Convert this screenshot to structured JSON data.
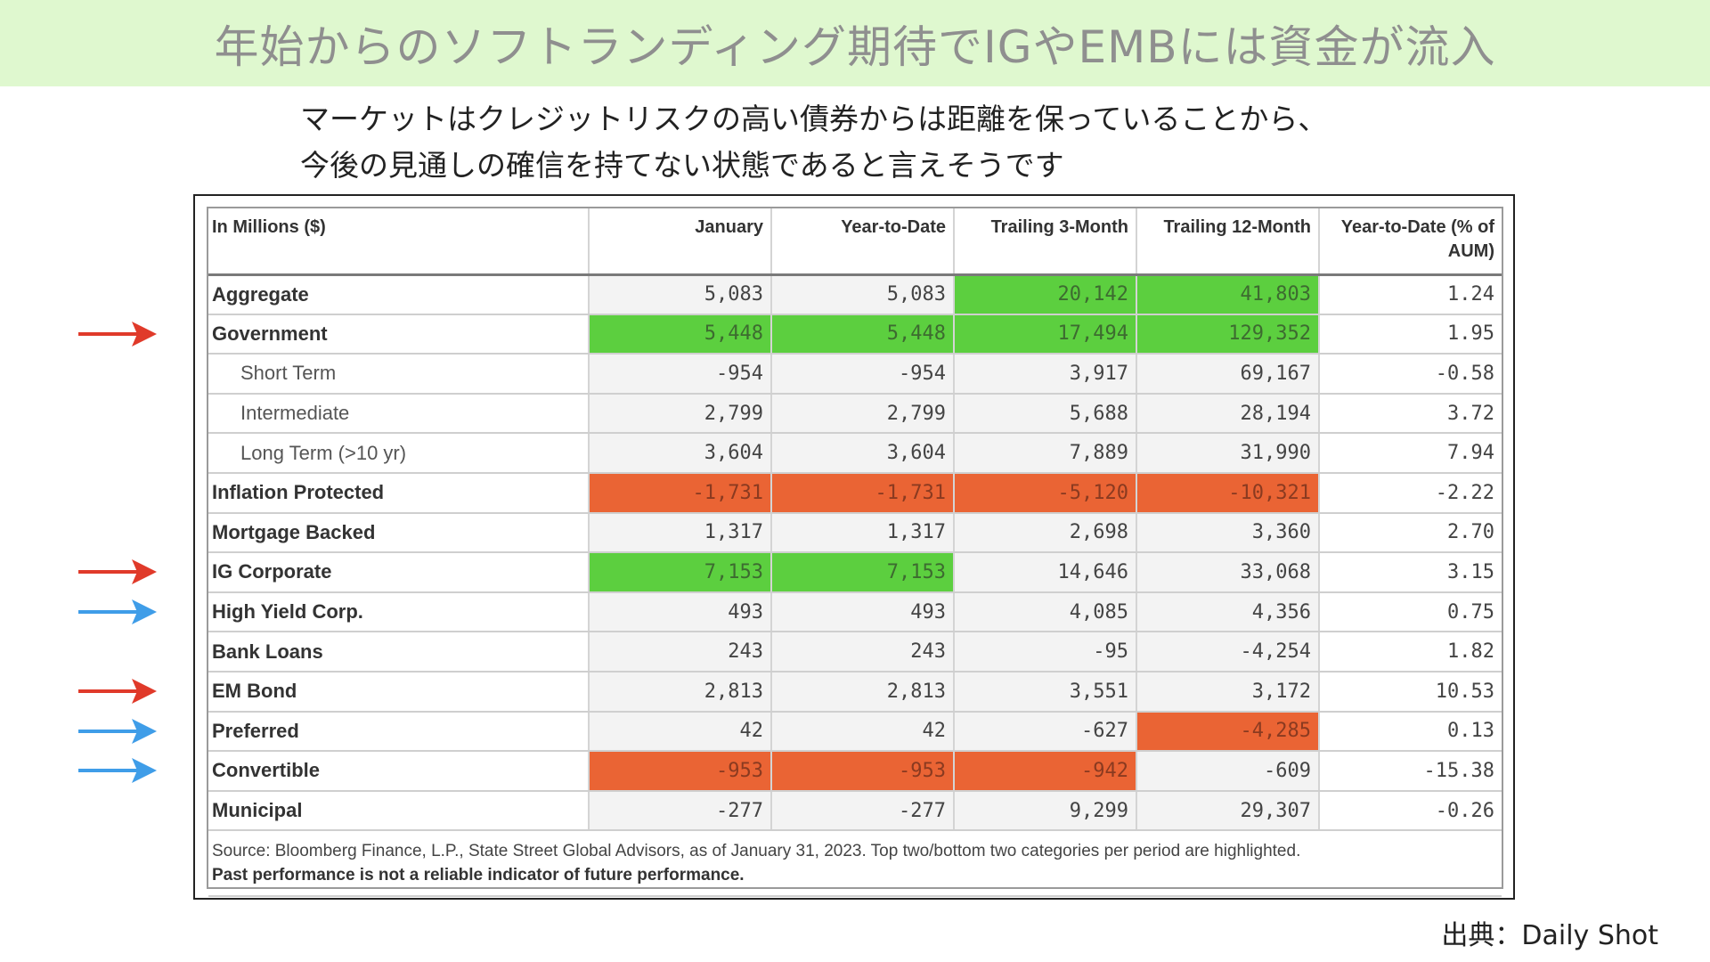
{
  "banner": {
    "title": "年始からのソフトランディング期待でIGやEMBには資金が流入"
  },
  "subtitle": {
    "line1": "マーケットはクレジットリスクの高い債券からは距離を保っていることから、",
    "line2": "今後の見通しの確信を持てない状態であると言えそうです"
  },
  "credit": "出典：Daily Shot",
  "colors": {
    "banner_bg": "#dff8cf",
    "highlight_top": "#5ccf3f",
    "highlight_bottom": "#ea6434",
    "arrow_red": "#e03a2a",
    "arrow_blue": "#3f9de8"
  },
  "chart_data": {
    "type": "table",
    "columns": [
      "In Millions ($)",
      "January",
      "Year-to-Date",
      "Trailing 3-Month",
      "Trailing 12-Month",
      "Year-to-Date (% of AUM)"
    ],
    "rows": [
      {
        "label": "Aggregate",
        "sub": false,
        "values": [
          "5,083",
          "5,083",
          "20,142",
          "41,803",
          "1.24"
        ],
        "highlight": [
          "",
          "",
          "green",
          "green",
          ""
        ],
        "arrow": ""
      },
      {
        "label": "Government",
        "sub": false,
        "values": [
          "5,448",
          "5,448",
          "17,494",
          "129,352",
          "1.95"
        ],
        "highlight": [
          "green",
          "green",
          "green",
          "green",
          ""
        ],
        "arrow": "red"
      },
      {
        "label": "Short Term",
        "sub": true,
        "values": [
          "-954",
          "-954",
          "3,917",
          "69,167",
          "-0.58"
        ],
        "highlight": [
          "",
          "",
          "",
          "",
          ""
        ],
        "arrow": ""
      },
      {
        "label": "Intermediate",
        "sub": true,
        "values": [
          "2,799",
          "2,799",
          "5,688",
          "28,194",
          "3.72"
        ],
        "highlight": [
          "",
          "",
          "",
          "",
          ""
        ],
        "arrow": ""
      },
      {
        "label": "Long Term (>10 yr)",
        "sub": true,
        "values": [
          "3,604",
          "3,604",
          "7,889",
          "31,990",
          "7.94"
        ],
        "highlight": [
          "",
          "",
          "",
          "",
          ""
        ],
        "arrow": ""
      },
      {
        "label": "Inflation Protected",
        "sub": false,
        "values": [
          "-1,731",
          "-1,731",
          "-5,120",
          "-10,321",
          "-2.22"
        ],
        "highlight": [
          "red",
          "red",
          "red",
          "red",
          ""
        ],
        "arrow": ""
      },
      {
        "label": "Mortgage Backed",
        "sub": false,
        "values": [
          "1,317",
          "1,317",
          "2,698",
          "3,360",
          "2.70"
        ],
        "highlight": [
          "",
          "",
          "",
          "",
          ""
        ],
        "arrow": ""
      },
      {
        "label": "IG Corporate",
        "sub": false,
        "values": [
          "7,153",
          "7,153",
          "14,646",
          "33,068",
          "3.15"
        ],
        "highlight": [
          "green",
          "green",
          "",
          "",
          ""
        ],
        "arrow": "red"
      },
      {
        "label": "High Yield Corp.",
        "sub": false,
        "values": [
          "493",
          "493",
          "4,085",
          "4,356",
          "0.75"
        ],
        "highlight": [
          "",
          "",
          "",
          "",
          ""
        ],
        "arrow": "blue"
      },
      {
        "label": "Bank Loans",
        "sub": false,
        "values": [
          "243",
          "243",
          "-95",
          "-4,254",
          "1.82"
        ],
        "highlight": [
          "",
          "",
          "",
          "",
          ""
        ],
        "arrow": ""
      },
      {
        "label": "EM Bond",
        "sub": false,
        "values": [
          "2,813",
          "2,813",
          "3,551",
          "3,172",
          "10.53"
        ],
        "highlight": [
          "",
          "",
          "",
          "",
          ""
        ],
        "arrow": "red"
      },
      {
        "label": "Preferred",
        "sub": false,
        "values": [
          "42",
          "42",
          "-627",
          "-4,285",
          "0.13"
        ],
        "highlight": [
          "",
          "",
          "",
          "red",
          ""
        ],
        "arrow": "blue"
      },
      {
        "label": "Convertible",
        "sub": false,
        "values": [
          "-953",
          "-953",
          "-942",
          "-609",
          "-15.38"
        ],
        "highlight": [
          "red",
          "red",
          "red",
          "",
          ""
        ],
        "arrow": "blue"
      },
      {
        "label": "Municipal",
        "sub": false,
        "values": [
          "-277",
          "-277",
          "9,299",
          "29,307",
          "-0.26"
        ],
        "highlight": [
          "",
          "",
          "",
          "",
          ""
        ],
        "arrow": ""
      }
    ],
    "footnote": "Source: Bloomberg Finance, L.P., State Street Global Advisors, as of January 31, 2023. Top two/bottom two categories per period are highlighted.",
    "disclaimer": "Past performance is not a reliable indicator of future performance."
  }
}
